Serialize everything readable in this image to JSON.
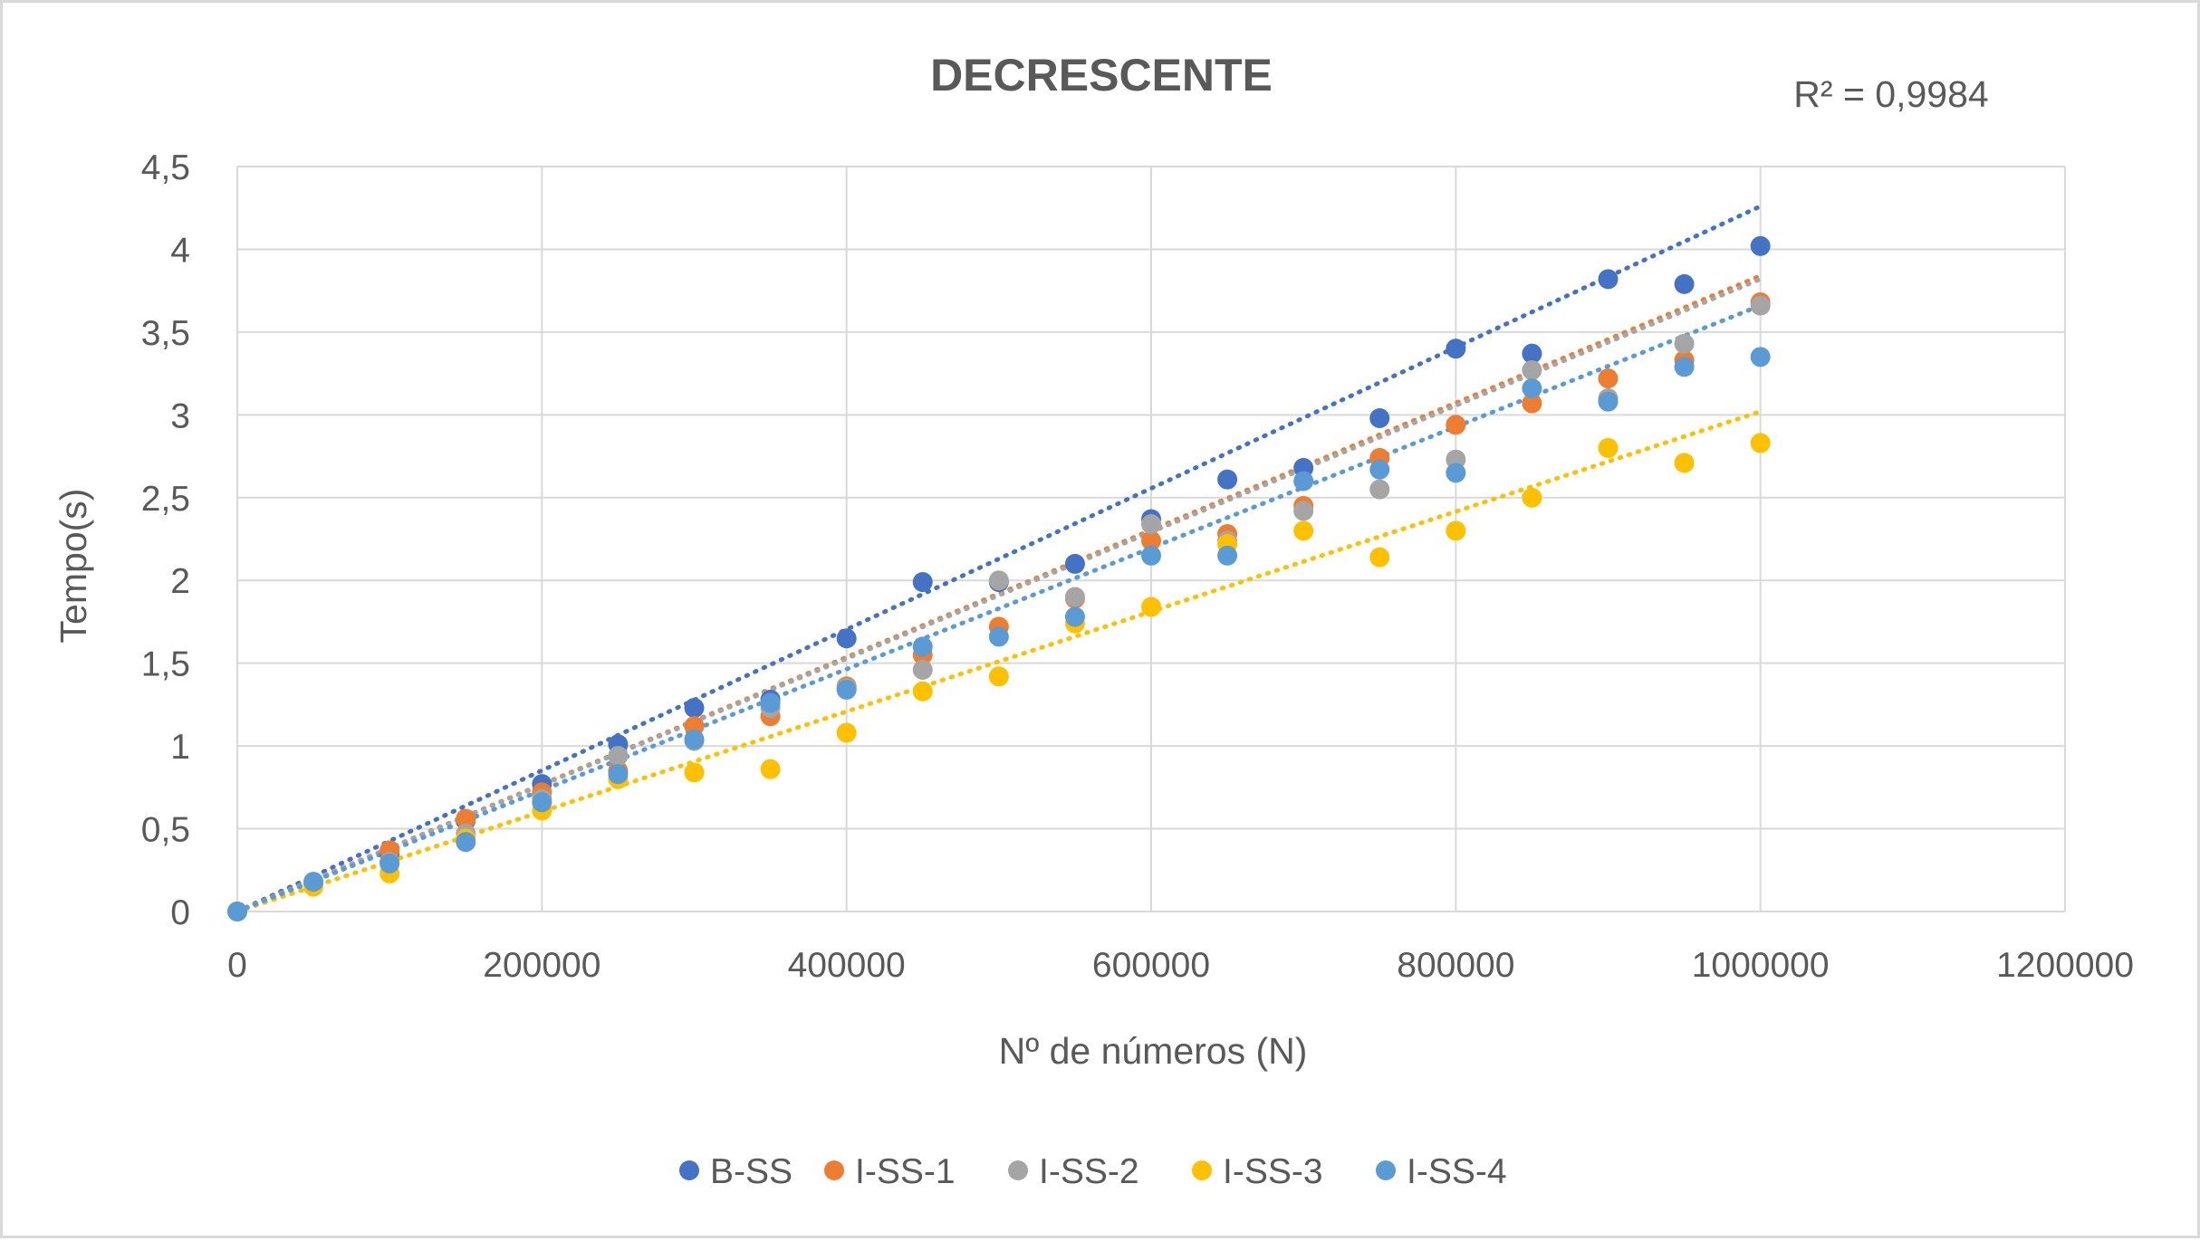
{
  "chart_data": {
    "type": "scatter",
    "title": "DECRESCENTE",
    "xlabel": "Nº de números (N)",
    "ylabel": "Tempo(s)",
    "xlim": [
      0,
      1200000
    ],
    "ylim": [
      0,
      4.5
    ],
    "x_ticks": [
      0,
      200000,
      400000,
      600000,
      800000,
      1000000,
      1200000
    ],
    "x_tick_labels": [
      "0",
      "200000",
      "400000",
      "600000",
      "800000",
      "1000000",
      "1200000"
    ],
    "y_ticks": [
      0,
      0.5,
      1,
      1.5,
      2,
      2.5,
      3,
      3.5,
      4,
      4.5
    ],
    "y_tick_labels": [
      "0",
      "0,5",
      "1",
      "1,5",
      "2",
      "2,5",
      "3",
      "3,5",
      "4",
      "4,5"
    ],
    "grid": true,
    "legend_position": "bottom",
    "annotation": "R² = 0,9984",
    "x": [
      0,
      50000,
      100000,
      150000,
      200000,
      250000,
      300000,
      350000,
      400000,
      450000,
      500000,
      550000,
      600000,
      650000,
      700000,
      750000,
      800000,
      850000,
      900000,
      950000,
      1000000
    ],
    "series": [
      {
        "name": "B-SS",
        "color": "#4472C4",
        "values": [
          0,
          0.17,
          0.35,
          0.55,
          0.77,
          1.01,
          1.23,
          1.28,
          1.65,
          1.99,
          1.99,
          2.1,
          2.37,
          2.61,
          2.68,
          2.98,
          3.4,
          3.37,
          3.82,
          3.79,
          4.02
        ],
        "trendline": {
          "type": "linear",
          "x_end": 1000000,
          "y_end": 4.26
        }
      },
      {
        "name": "I-SS-1",
        "color": "#ED7D31",
        "values": [
          0,
          0.17,
          0.37,
          0.56,
          0.72,
          0.85,
          1.12,
          1.18,
          1.36,
          1.55,
          1.72,
          1.89,
          2.24,
          2.28,
          2.45,
          2.74,
          2.94,
          3.07,
          3.22,
          3.33,
          3.68
        ],
        "trendline": {
          "type": "linear",
          "x_end": 1000000,
          "y_end": 3.84
        }
      },
      {
        "name": "I-SS-2",
        "color": "#A5A5A5",
        "values": [
          0,
          0.17,
          0.3,
          0.47,
          0.68,
          0.94,
          1.03,
          1.23,
          1.35,
          1.46,
          2.0,
          1.9,
          2.34,
          2.24,
          2.42,
          2.55,
          2.73,
          3.27,
          3.1,
          3.43,
          3.66
        ],
        "trendline": {
          "type": "linear",
          "x_end": 1000000,
          "y_end": 3.82
        }
      },
      {
        "name": "I-SS-3",
        "color": "#FFC000",
        "values": [
          0,
          0.15,
          0.23,
          0.44,
          0.61,
          0.8,
          0.84,
          0.86,
          1.08,
          1.33,
          1.42,
          1.74,
          1.84,
          2.22,
          2.3,
          2.14,
          2.3,
          2.5,
          2.8,
          2.71,
          2.83
        ],
        "trendline": {
          "type": "linear",
          "x_end": 1000000,
          "y_end": 3.02
        }
      },
      {
        "name": "I-SS-4",
        "color": "#5B9BD5",
        "values": [
          0,
          0.18,
          0.29,
          0.42,
          0.66,
          0.83,
          1.04,
          1.26,
          1.34,
          1.6,
          1.66,
          1.78,
          2.15,
          2.15,
          2.6,
          2.67,
          2.65,
          3.16,
          3.08,
          3.29,
          3.35
        ],
        "trendline": {
          "type": "linear",
          "x_end": 1000000,
          "y_end": 3.66
        }
      }
    ]
  }
}
